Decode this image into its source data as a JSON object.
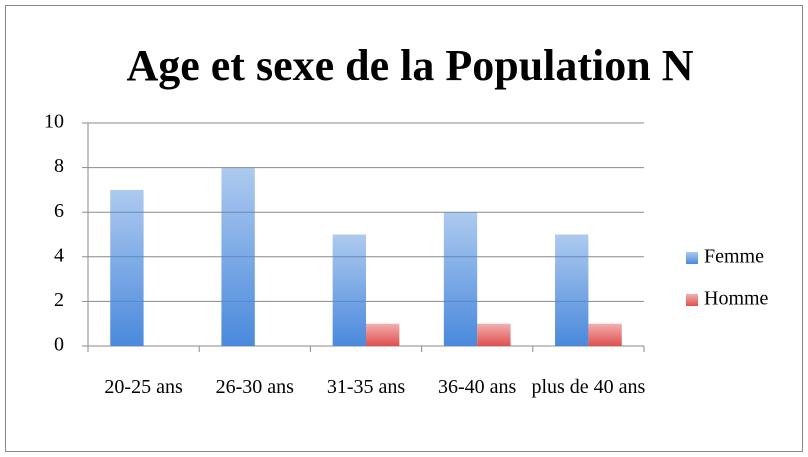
{
  "chart_data": {
    "type": "bar",
    "title": "Age et sexe de la Population N",
    "categories": [
      "20-25 ans",
      "26-30 ans",
      "31-35 ans",
      "36-40 ans",
      "plus de 40 ans"
    ],
    "series": [
      {
        "name": "Femme",
        "color": "#4a89dc",
        "values": [
          7,
          8,
          5,
          6,
          5
        ]
      },
      {
        "name": "Homme",
        "color": "#e0504f",
        "values": [
          0,
          0,
          1,
          1,
          1
        ]
      }
    ],
    "ylim": [
      0,
      10
    ],
    "yticks": [
      0,
      2,
      4,
      6,
      8,
      10
    ],
    "grid": true,
    "legend": "right"
  }
}
